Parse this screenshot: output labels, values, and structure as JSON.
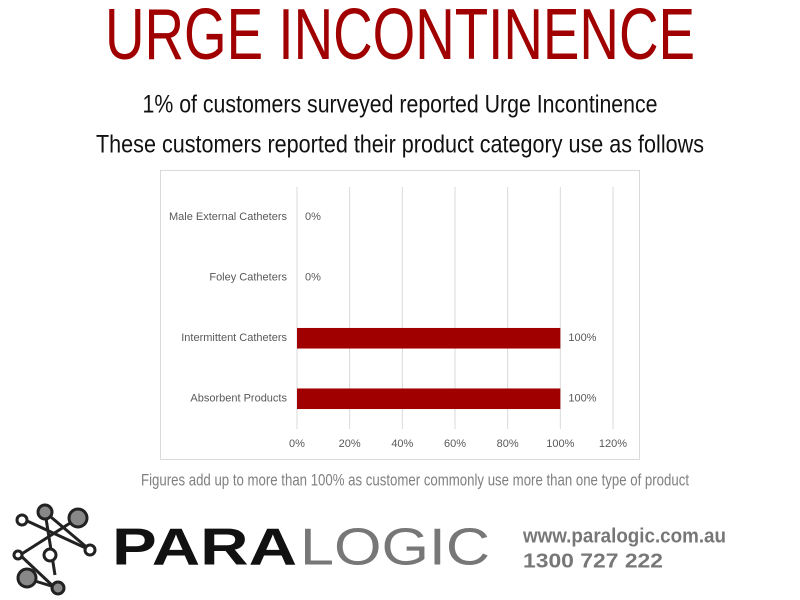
{
  "title": "URGE INCONTINENCE",
  "subtitle": [
    "1% of customers surveyed reported Urge Incontinence",
    "These customers reported their product category use as follows"
  ],
  "chart_data": {
    "type": "bar",
    "orientation": "horizontal",
    "categories": [
      "Male External Catheters",
      "Foley Catheters",
      "Intermittent Catheters",
      "Absorbent Products"
    ],
    "values": [
      0,
      0,
      100,
      100
    ],
    "value_labels": [
      "0%",
      "0%",
      "100%",
      "100%"
    ],
    "color": "#a00000",
    "xlim": [
      0,
      120
    ],
    "xticks": [
      {
        "value": 0,
        "label": "0%"
      },
      {
        "value": 20,
        "label": "20%"
      },
      {
        "value": 40,
        "label": "40%"
      },
      {
        "value": 60,
        "label": "60%"
      },
      {
        "value": 80,
        "label": "80%"
      },
      {
        "value": 100,
        "label": "100%"
      },
      {
        "value": 120,
        "label": "120%"
      }
    ],
    "grid": true
  },
  "footnote": "Figures add up to more than 100% as customer commonly use more than one type of product",
  "logo": {
    "part1": "PARA",
    "part2": "LOGIC"
  },
  "website": "www.paralogic.com.au",
  "phone": "1300 727 222"
}
